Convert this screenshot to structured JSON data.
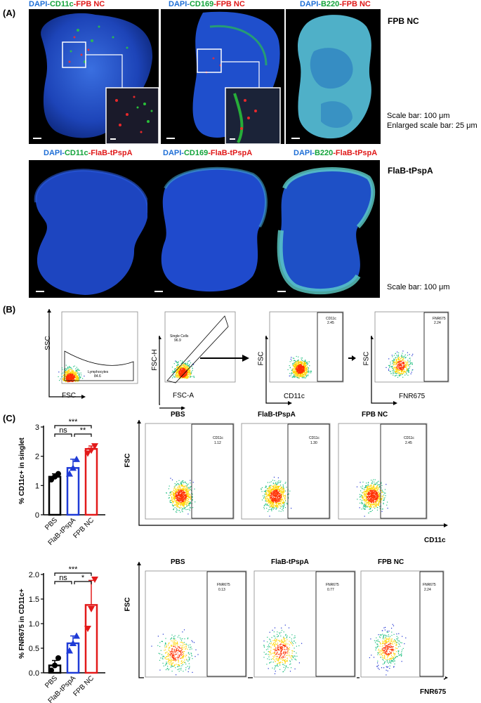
{
  "figure": {
    "panelA": {
      "letter": "(A)",
      "row1_label": "FPB NC",
      "row2_label": "FlaB-tPspA",
      "row1_titles": [
        {
          "stain1": "DAPI",
          "stain2": "CD11c",
          "stain3": "FPB NC"
        },
        {
          "stain1": "DAPI",
          "stain2": "CD169",
          "stain3": "FPB NC"
        },
        {
          "stain1": "DAPI",
          "stain2": "B220",
          "stain3": "FPB NC"
        }
      ],
      "row2_titles": [
        {
          "stain1": "DAPI",
          "stain2": "CD11c",
          "stain3": "FlaB-tPspA"
        },
        {
          "stain1": "DAPI",
          "stain2": "CD169",
          "stain3": "FlaB-tPspA"
        },
        {
          "stain1": "DAPI",
          "stain2": "B220",
          "stain3": "FlaB-tPspA"
        }
      ],
      "scale_row1": "Scale bar: 100 μm",
      "scale_row1_enlarged": "Enlarged scale bar: 25 μm",
      "scale_row2": "Scale bar: 100 μm"
    },
    "panelB": {
      "letter": "(B)",
      "plots": [
        {
          "x": "FSC",
          "y": "SSC",
          "gate_name": "Lymphocytes",
          "gate_value": "84.6"
        },
        {
          "x": "FSC-A",
          "y": "FSC-H",
          "gate_name": "Single Cells",
          "gate_value": "96.9"
        },
        {
          "x": "CD11c",
          "y": "FSC",
          "gate_name": "CD11c",
          "gate_value": "2.45"
        },
        {
          "x": "FNR675",
          "y": "FSC",
          "gate_name": "FNR675",
          "gate_value": "2.24"
        }
      ]
    },
    "panelC": {
      "letter": "(C)",
      "sig_top": [
        "***",
        "ns",
        "**"
      ],
      "sig_bottom": [
        "***",
        "ns",
        "*"
      ],
      "flow_row1": {
        "y": "FSC",
        "x": "CD11c",
        "groups": [
          {
            "name": "PBS",
            "gate": "CD11c",
            "value": "1.12"
          },
          {
            "name": "FlaB-tPspA",
            "gate": "CD11c",
            "value": "1.30"
          },
          {
            "name": "FPB NC",
            "gate": "CD11c",
            "value": "2.45"
          }
        ]
      },
      "flow_row2": {
        "y": "FSC",
        "x": "FNR675",
        "groups": [
          {
            "name": "PBS",
            "gate": "FNR675",
            "value": "0.13"
          },
          {
            "name": "FlaB-tPspA",
            "gate": "FNR675",
            "value": "0.77"
          },
          {
            "name": "FPB NC",
            "gate": "FNR675",
            "value": "2.24"
          }
        ]
      }
    }
  },
  "chart_data": [
    {
      "type": "bar",
      "ylabel": "% CD11c+ in singlet",
      "categories": [
        "PBS",
        "FlaB-tPspA",
        "FPB NC"
      ],
      "values": [
        1.3,
        1.6,
        2.25
      ],
      "errors": [
        0.1,
        0.3,
        0.1
      ],
      "points": [
        [
          1.2,
          1.3,
          1.4
        ],
        [
          1.4,
          1.6,
          1.9
        ],
        [
          2.1,
          2.2,
          2.35
        ]
      ],
      "ylim": [
        0,
        3
      ],
      "yticks": [
        "0",
        "1",
        "2",
        "3"
      ],
      "colors": [
        "#000000",
        "#1f3bd6",
        "#e31a1a"
      ]
    },
    {
      "type": "bar",
      "ylabel": "% FNR675 in CD11c+",
      "categories": [
        "PBS",
        "FlaB-tPspA",
        "FPB NC"
      ],
      "values": [
        0.15,
        0.6,
        1.38
      ],
      "errors": [
        0.1,
        0.15,
        0.5
      ],
      "points": [
        [
          0.05,
          0.15,
          0.3
        ],
        [
          0.45,
          0.6,
          0.75
        ],
        [
          0.9,
          1.3,
          1.9
        ]
      ],
      "ylim": [
        0,
        2.0
      ],
      "yticks": [
        "0.0",
        "0.5",
        "1.0",
        "1.5",
        "2.0"
      ],
      "colors": [
        "#000000",
        "#1f3bd6",
        "#e31a1a"
      ]
    }
  ]
}
